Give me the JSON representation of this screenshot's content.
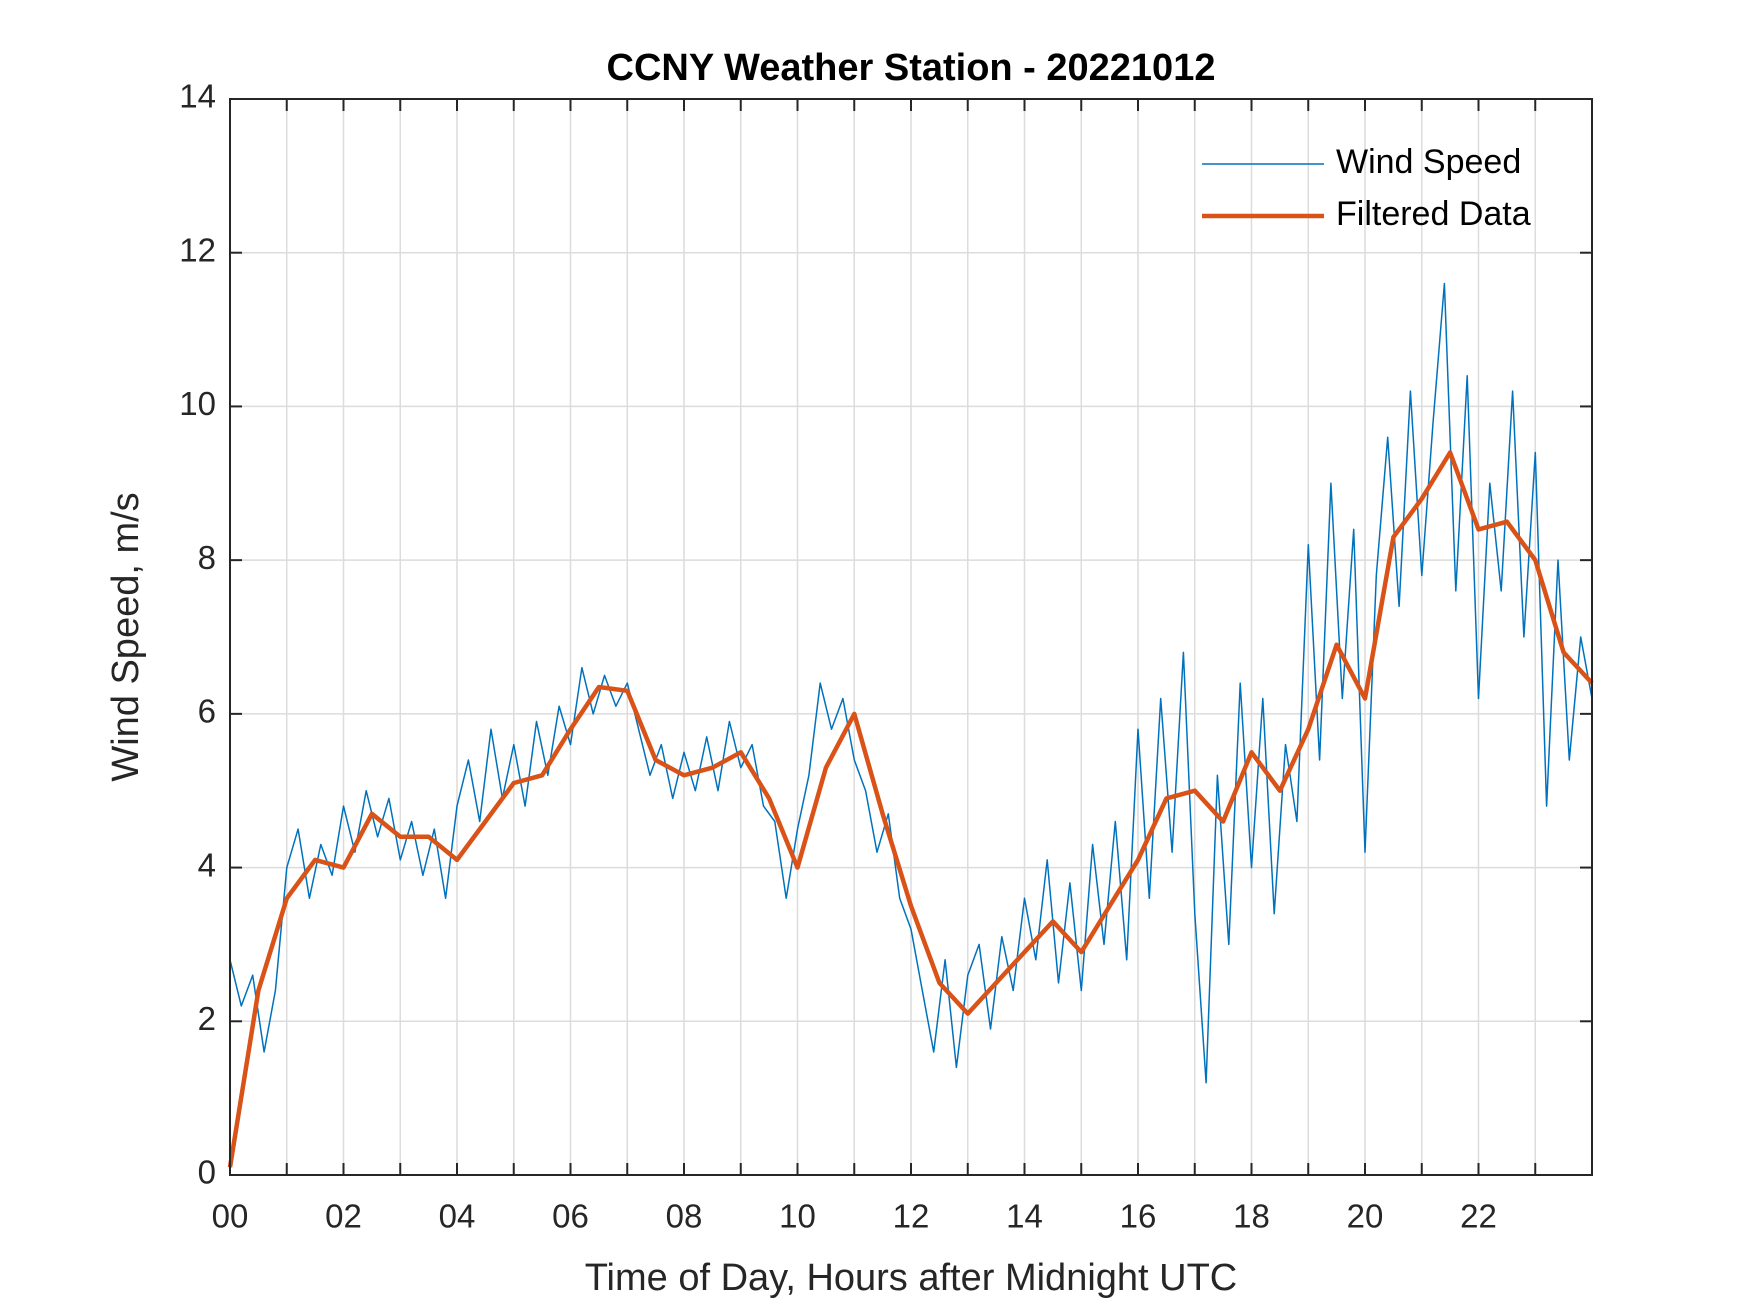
{
  "chart_data": {
    "type": "line",
    "title": "CCNY Weather Station - 20221012",
    "xlabel": "Time of Day, Hours after Midnight UTC",
    "ylabel": "Wind Speed, m/s",
    "xlim": [
      0,
      24
    ],
    "ylim": [
      0,
      14
    ],
    "xticks": [
      {
        "value": 0,
        "label": "00"
      },
      {
        "value": 2,
        "label": "02"
      },
      {
        "value": 4,
        "label": "04"
      },
      {
        "value": 6,
        "label": "06"
      },
      {
        "value": 8,
        "label": "08"
      },
      {
        "value": 10,
        "label": "10"
      },
      {
        "value": 12,
        "label": "12"
      },
      {
        "value": 14,
        "label": "14"
      },
      {
        "value": 16,
        "label": "16"
      },
      {
        "value": 18,
        "label": "18"
      },
      {
        "value": 20,
        "label": "20"
      },
      {
        "value": 22,
        "label": "22"
      }
    ],
    "xminorticks": [
      1,
      3,
      5,
      7,
      9,
      11,
      13,
      15,
      17,
      19,
      21,
      23
    ],
    "yticks": [
      0,
      2,
      4,
      6,
      8,
      10,
      12,
      14
    ],
    "grid": true,
    "legend": "upper right",
    "series": [
      {
        "name": "Wind Speed",
        "color": "#0072bd",
        "width": 1.5,
        "x": [
          0,
          0.2,
          0.4,
          0.6,
          0.8,
          1,
          1.2,
          1.4,
          1.6,
          1.8,
          2,
          2.2,
          2.4,
          2.6,
          2.8,
          3,
          3.2,
          3.4,
          3.6,
          3.8,
          4,
          4.2,
          4.4,
          4.6,
          4.8,
          5,
          5.2,
          5.4,
          5.6,
          5.8,
          6,
          6.2,
          6.4,
          6.6,
          6.8,
          7,
          7.2,
          7.4,
          7.6,
          7.8,
          8,
          8.2,
          8.4,
          8.6,
          8.8,
          9,
          9.2,
          9.4,
          9.6,
          9.8,
          10,
          10.2,
          10.4,
          10.6,
          10.8,
          11,
          11.2,
          11.4,
          11.6,
          11.8,
          12,
          12.2,
          12.4,
          12.6,
          12.8,
          13,
          13.2,
          13.4,
          13.6,
          13.8,
          14,
          14.2,
          14.4,
          14.6,
          14.8,
          15,
          15.2,
          15.4,
          15.6,
          15.8,
          16,
          16.2,
          16.4,
          16.6,
          16.8,
          17,
          17.2,
          17.4,
          17.6,
          17.8,
          18,
          18.2,
          18.4,
          18.6,
          18.8,
          19,
          19.2,
          19.4,
          19.6,
          19.8,
          20,
          20.2,
          20.4,
          20.6,
          20.8,
          21,
          21.2,
          21.4,
          21.6,
          21.8,
          22,
          22.2,
          22.4,
          22.6,
          22.8,
          23,
          23.2,
          23.4,
          23.6,
          23.8,
          24
        ],
        "values": [
          2.8,
          2.2,
          2.6,
          1.6,
          2.4,
          4.0,
          4.5,
          3.6,
          4.3,
          3.9,
          4.8,
          4.2,
          5.0,
          4.4,
          4.9,
          4.1,
          4.6,
          3.9,
          4.5,
          3.6,
          4.8,
          5.4,
          4.6,
          5.8,
          4.9,
          5.6,
          4.8,
          5.9,
          5.2,
          6.1,
          5.6,
          6.6,
          6.0,
          6.5,
          6.1,
          6.4,
          5.8,
          5.2,
          5.6,
          4.9,
          5.5,
          5.0,
          5.7,
          5.0,
          5.9,
          5.3,
          5.6,
          4.8,
          4.6,
          3.6,
          4.5,
          5.2,
          6.4,
          5.8,
          6.2,
          5.4,
          5.0,
          4.2,
          4.7,
          3.6,
          3.2,
          2.4,
          1.6,
          2.8,
          1.4,
          2.6,
          3.0,
          1.9,
          3.1,
          2.4,
          3.6,
          2.8,
          4.1,
          2.5,
          3.8,
          2.4,
          4.3,
          3.0,
          4.6,
          2.8,
          5.8,
          3.6,
          6.2,
          4.2,
          6.8,
          3.4,
          1.2,
          5.2,
          3.0,
          6.4,
          4.0,
          6.2,
          3.4,
          5.6,
          4.6,
          8.2,
          5.4,
          9.0,
          6.2,
          8.4,
          4.2,
          7.8,
          9.6,
          7.4,
          10.2,
          7.8,
          9.8,
          11.6,
          7.6,
          10.4,
          6.2,
          9.0,
          7.6,
          10.2,
          7.0,
          9.4,
          4.8,
          8.0,
          5.4,
          7.0,
          6.2
        ]
      },
      {
        "name": "Filtered Data",
        "color": "#d95319",
        "width": 4.5,
        "x": [
          0,
          0.5,
          1,
          1.5,
          2,
          2.5,
          3,
          3.5,
          4,
          4.5,
          5,
          5.5,
          6,
          6.5,
          7,
          7.5,
          8,
          8.5,
          9,
          9.5,
          10,
          10.5,
          11,
          11.5,
          12,
          12.5,
          13,
          13.5,
          14,
          14.5,
          15,
          15.5,
          16,
          16.5,
          17,
          17.5,
          18,
          18.5,
          19,
          19.5,
          20,
          20.5,
          21,
          21.5,
          22,
          22.5,
          23,
          23.5,
          24
        ],
        "values": [
          0.1,
          2.4,
          3.6,
          4.1,
          4.0,
          4.7,
          4.4,
          4.4,
          4.1,
          4.6,
          5.1,
          5.2,
          5.8,
          6.35,
          6.3,
          5.4,
          5.2,
          5.3,
          5.5,
          4.9,
          4.0,
          5.3,
          6.0,
          4.7,
          3.5,
          2.5,
          2.1,
          2.5,
          2.9,
          3.3,
          2.9,
          3.5,
          4.1,
          4.9,
          5.0,
          4.6,
          5.5,
          5.0,
          5.8,
          6.9,
          6.2,
          8.3,
          8.8,
          9.4,
          8.4,
          8.5,
          8.0,
          6.8,
          6.4
        ]
      }
    ]
  }
}
